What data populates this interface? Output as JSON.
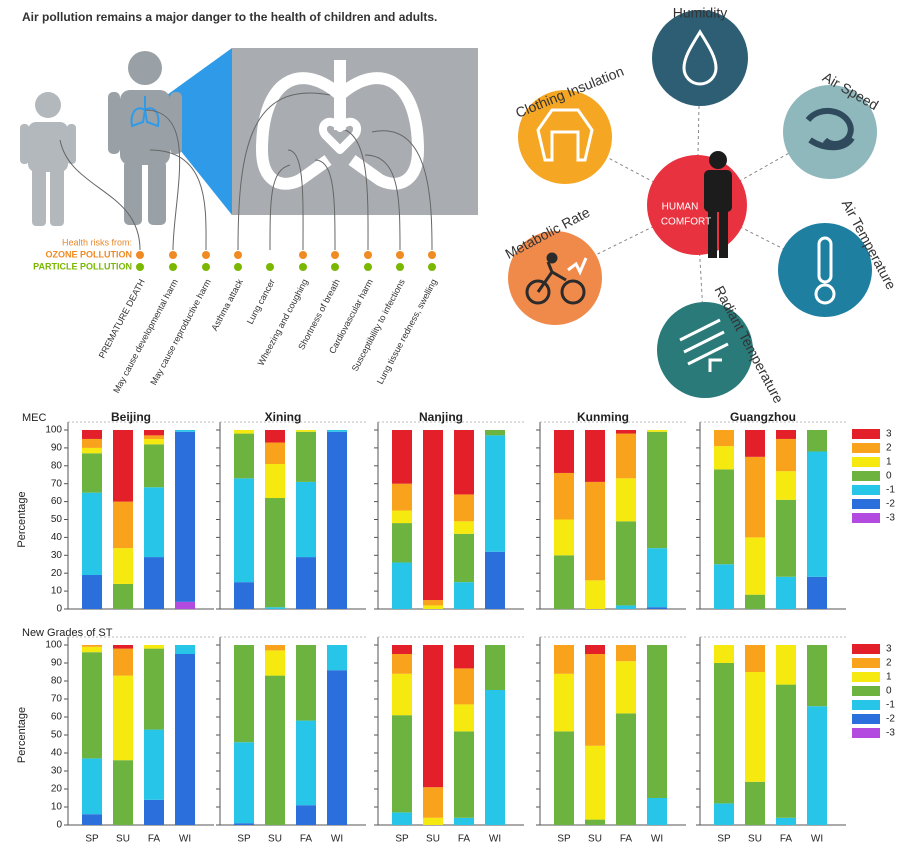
{
  "infographic": {
    "title": "Air pollution remains a major danger to the health of children and adults.",
    "legend_title": "Health risks from:",
    "ozone_label": "OZONE POLLUTION",
    "particle_label": "PARTICLE POLLUTION",
    "risks": [
      {
        "label": "PREMATURE DEATH",
        "ozone": true,
        "particle": true
      },
      {
        "label": "May cause developmental harm",
        "ozone": true,
        "particle": true
      },
      {
        "label": "May cause reproductive harm",
        "ozone": true,
        "particle": true
      },
      {
        "label": "Asthma attack",
        "ozone": true,
        "particle": true
      },
      {
        "label": "Lung cancer",
        "ozone": false,
        "particle": true
      },
      {
        "label": "Wheezing and coughing",
        "ozone": true,
        "particle": true
      },
      {
        "label": "Shortness of breath",
        "ozone": true,
        "particle": true
      },
      {
        "label": "Cardiovascular harm",
        "ozone": true,
        "particle": true
      },
      {
        "label": "Susceptibility to infections",
        "ozone": true,
        "particle": true
      },
      {
        "label": "Lung tissue redness, swelling",
        "ozone": true,
        "particle": true
      }
    ]
  },
  "comfort_diagram": {
    "center": [
      "HUMAN",
      "COMFORT"
    ],
    "factors": [
      "Humidity",
      "Air Speed",
      "Air Temperature",
      "Radiant Temperature",
      "Metabolic Rate",
      "Clothing Insulation"
    ]
  },
  "chart_data": [
    {
      "type": "bar",
      "stacked": true,
      "label": "MEC",
      "y_label": "Percentage",
      "ylim": [
        0,
        100
      ],
      "yticks": [
        0,
        10,
        20,
        30,
        40,
        50,
        60,
        70,
        80,
        90,
        100
      ],
      "categories": [
        "SP",
        "SU",
        "FA",
        "WI"
      ],
      "series": [
        {
          "name": "3",
          "color": "#e3202a"
        },
        {
          "name": "2",
          "color": "#f9a21b"
        },
        {
          "name": "1",
          "color": "#f5e90f"
        },
        {
          "name": "0",
          "color": "#6cb33f"
        },
        {
          "name": "-1",
          "color": "#27c6e8"
        },
        {
          "name": "-2",
          "color": "#2a6fdb"
        },
        {
          "name": "-3",
          "color": "#b44be0"
        }
      ],
      "panels": [
        {
          "title": "Beijing",
          "values": [
            [
              5,
              40,
              3,
              0
            ],
            [
              5,
              26,
              2,
              0
            ],
            [
              3,
              20,
              3,
              0
            ],
            [
              22,
              14,
              24,
              0
            ],
            [
              46,
              0,
              39,
              1
            ],
            [
              19,
              0,
              29,
              95
            ],
            [
              0,
              0,
              0,
              4
            ]
          ]
        },
        {
          "title": "Xining",
          "values": [
            [
              0,
              7,
              0,
              0
            ],
            [
              0,
              12,
              0,
              0
            ],
            [
              2,
              19,
              1,
              0
            ],
            [
              25,
              61,
              28,
              0
            ],
            [
              58,
              1,
              42,
              1
            ],
            [
              15,
              0,
              29,
              99
            ],
            [
              0,
              0,
              0,
              0
            ]
          ]
        },
        {
          "title": "Nanjing",
          "values": [
            [
              30,
              95,
              36,
              0
            ],
            [
              15,
              3,
              15,
              0
            ],
            [
              7,
              2,
              7,
              0
            ],
            [
              22,
              0,
              27,
              3
            ],
            [
              26,
              0,
              15,
              65
            ],
            [
              0,
              0,
              0,
              32
            ],
            [
              0,
              0,
              0,
              0
            ]
          ]
        },
        {
          "title": "Kunming",
          "values": [
            [
              24,
              29,
              2,
              0
            ],
            [
              26,
              55,
              25,
              0
            ],
            [
              20,
              16,
              24,
              1
            ],
            [
              30,
              0,
              47,
              65
            ],
            [
              0,
              0,
              2,
              33
            ],
            [
              0,
              0,
              0,
              1
            ],
            [
              0,
              0,
              0,
              0
            ]
          ]
        },
        {
          "title": "Guangzhou",
          "values": [
            [
              0,
              15,
              5,
              0
            ],
            [
              9,
              45,
              18,
              0
            ],
            [
              13,
              32,
              16,
              0
            ],
            [
              53,
              8,
              43,
              12
            ],
            [
              25,
              0,
              18,
              70
            ],
            [
              0,
              0,
              0,
              18
            ],
            [
              0,
              0,
              0,
              0
            ]
          ]
        }
      ]
    },
    {
      "type": "bar",
      "stacked": true,
      "label": "New Grades of ST",
      "y_label": "Percentage",
      "ylim": [
        0,
        100
      ],
      "yticks": [
        0,
        10,
        20,
        30,
        40,
        50,
        60,
        70,
        80,
        90,
        100
      ],
      "categories": [
        "SP",
        "SU",
        "FA",
        "WI"
      ],
      "series": [
        {
          "name": "3",
          "color": "#e3202a"
        },
        {
          "name": "2",
          "color": "#f9a21b"
        },
        {
          "name": "1",
          "color": "#f5e90f"
        },
        {
          "name": "0",
          "color": "#6cb33f"
        },
        {
          "name": "-1",
          "color": "#27c6e8"
        },
        {
          "name": "-2",
          "color": "#2a6fdb"
        },
        {
          "name": "-3",
          "color": "#b44be0"
        }
      ],
      "panels": [
        {
          "values": [
            [
              0,
              2,
              0,
              0
            ],
            [
              1,
              15,
              0,
              0
            ],
            [
              3,
              47,
              2,
              0
            ],
            [
              59,
              36,
              45,
              0
            ],
            [
              31,
              0,
              39,
              5
            ],
            [
              6,
              0,
              14,
              95
            ],
            [
              0,
              0,
              0,
              0
            ]
          ]
        },
        {
          "values": [
            [
              0,
              0,
              0,
              0
            ],
            [
              0,
              3,
              0,
              0
            ],
            [
              0,
              14,
              0,
              0
            ],
            [
              54,
              83,
              42,
              0
            ],
            [
              45,
              0,
              47,
              14
            ],
            [
              1,
              0,
              11,
              86
            ],
            [
              0,
              0,
              0,
              0
            ]
          ]
        },
        {
          "values": [
            [
              5,
              79,
              13,
              0
            ],
            [
              11,
              17,
              20,
              0
            ],
            [
              23,
              4,
              15,
              0
            ],
            [
              54,
              0,
              48,
              25
            ],
            [
              7,
              0,
              4,
              75
            ],
            [
              0,
              0,
              0,
              0
            ],
            [
              0,
              0,
              0,
              0
            ]
          ]
        },
        {
          "values": [
            [
              0,
              5,
              0,
              0
            ],
            [
              16,
              51,
              9,
              0
            ],
            [
              32,
              41,
              29,
              0
            ],
            [
              52,
              3,
              62,
              85
            ],
            [
              0,
              0,
              0,
              15
            ],
            [
              0,
              0,
              0,
              0
            ],
            [
              0,
              0,
              0,
              0
            ]
          ]
        },
        {
          "values": [
            [
              0,
              0,
              0,
              0
            ],
            [
              0,
              15,
              0,
              0
            ],
            [
              10,
              61,
              22,
              0
            ],
            [
              78,
              24,
              74,
              34
            ],
            [
              12,
              0,
              4,
              66
            ],
            [
              0,
              0,
              0,
              0
            ],
            [
              0,
              0,
              0,
              0
            ]
          ]
        }
      ]
    }
  ]
}
